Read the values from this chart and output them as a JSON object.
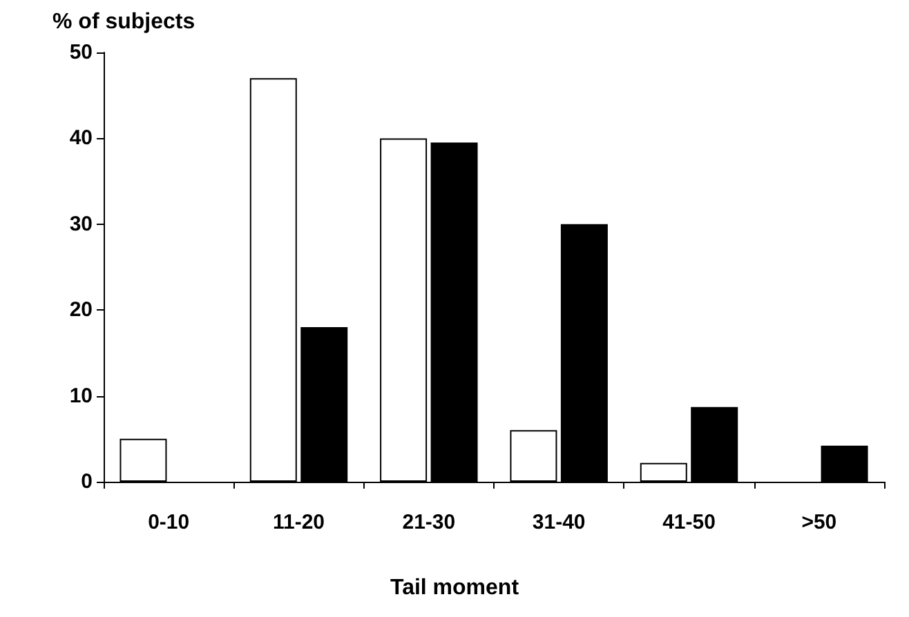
{
  "chart_data": {
    "type": "bar",
    "ylabel": "% of subjects",
    "xlabel": "Tail moment",
    "categories": [
      "0-10",
      "11-20",
      "21-30",
      "31-40",
      "41-50",
      ">50"
    ],
    "series": [
      {
        "color": "#ffffff",
        "values": [
          5,
          47,
          40,
          6,
          2.2,
          null
        ]
      },
      {
        "color": "#000000",
        "values": [
          null,
          18,
          39.5,
          30,
          8.7,
          4.2
        ]
      }
    ],
    "ylim": [
      0,
      50
    ],
    "yticks": [
      0,
      10,
      20,
      30,
      40,
      50
    ],
    "grid": false
  }
}
